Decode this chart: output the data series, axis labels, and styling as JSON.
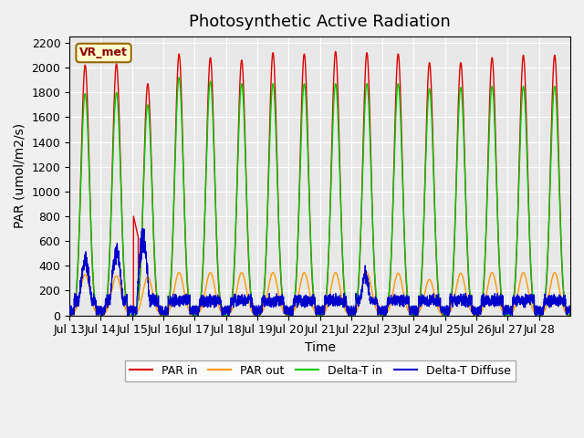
{
  "title": "Photosynthetic Active Radiation",
  "ylabel": "PAR (umol/m2/s)",
  "xlabel": "Time",
  "annotation": "VR_met",
  "ylim": [
    0,
    2250
  ],
  "xlim": [
    0,
    16
  ],
  "xtick_labels": [
    "Jul 13",
    "Jul 14",
    "Jul 15",
    "Jul 16",
    "Jul 17",
    "Jul 18",
    "Jul 19",
    "Jul 20",
    "Jul 21",
    "Jul 22",
    "Jul 23",
    "Jul 24",
    "Jul 25",
    "Jul 26",
    "Jul 27",
    "Jul 28"
  ],
  "xtick_positions": [
    0,
    1,
    2,
    3,
    4,
    5,
    6,
    7,
    8,
    9,
    10,
    11,
    12,
    13,
    14,
    15
  ],
  "ytick_labels": [
    "0",
    "200",
    "400",
    "600",
    "800",
    "1000",
    "1200",
    "1400",
    "1600",
    "1800",
    "2000",
    "2200"
  ],
  "ytick_positions": [
    0,
    200,
    400,
    600,
    800,
    1000,
    1200,
    1400,
    1600,
    1800,
    2000,
    2200
  ],
  "colors": {
    "PAR_in": "#dd0000",
    "PAR_out": "#ff9900",
    "Delta_T_in": "#00cc00",
    "Delta_T_Diffuse": "#0000cc"
  },
  "legend_labels": [
    "PAR in",
    "PAR out",
    "Delta-T in",
    "Delta-T Diffuse"
  ],
  "bg_color": "#e8e8e8",
  "grid_color": "#ffffff",
  "title_fontsize": 13,
  "label_fontsize": 10,
  "tick_fontsize": 9
}
